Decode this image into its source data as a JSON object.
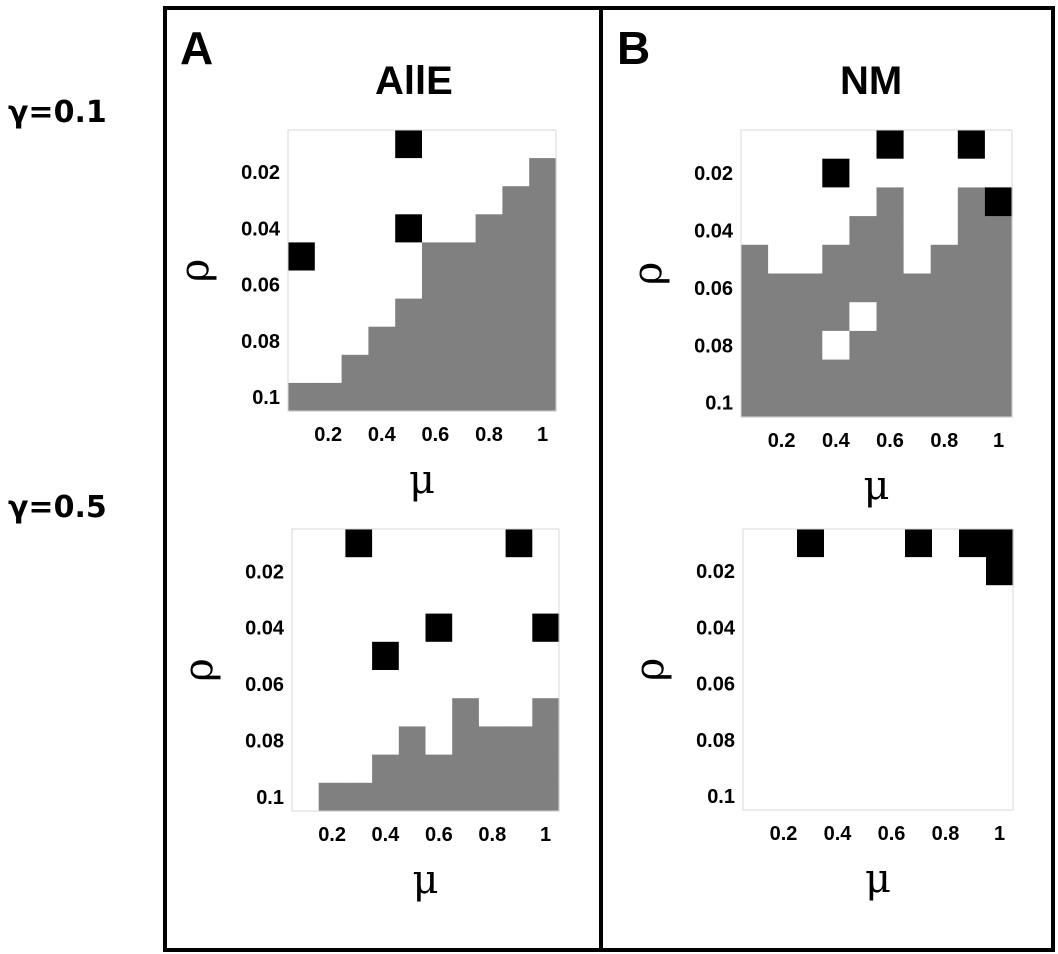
{
  "row_labels": [
    "γ=0.1",
    "γ=0.5"
  ],
  "panels": [
    {
      "letter": "A",
      "title": "AllE"
    },
    {
      "letter": "B",
      "title": "NM"
    }
  ],
  "colors": {
    "empty": "#ffffff",
    "gray": "#808080",
    "black": "#000000",
    "frame": "#000000"
  },
  "chart_data": [
    {
      "type": "heatmap",
      "panel": "A",
      "title": "AllE",
      "gamma": "γ=0.1",
      "xlabel": "μ",
      "ylabel": "ρ",
      "x": [
        0.1,
        0.2,
        0.3,
        0.4,
        0.5,
        0.6,
        0.7,
        0.8,
        0.9,
        1.0
      ],
      "y": [
        0.01,
        0.02,
        0.03,
        0.04,
        0.05,
        0.06,
        0.07,
        0.08,
        0.09,
        0.1
      ],
      "x_ticks": [
        "0.2",
        "0.4",
        "0.6",
        "0.8",
        "1"
      ],
      "y_ticks": [
        "0.02",
        "0.04",
        "0.06",
        "0.08",
        "0.1"
      ],
      "legend": {
        "0": "white",
        "1": "gray",
        "2": "black"
      },
      "values": [
        [
          0,
          0,
          0,
          0,
          2,
          0,
          0,
          0,
          0,
          0
        ],
        [
          0,
          0,
          0,
          0,
          0,
          0,
          0,
          0,
          0,
          1
        ],
        [
          0,
          0,
          0,
          0,
          0,
          0,
          0,
          0,
          1,
          1
        ],
        [
          0,
          0,
          0,
          0,
          2,
          0,
          0,
          1,
          1,
          1
        ],
        [
          2,
          0,
          0,
          0,
          0,
          1,
          1,
          1,
          1,
          1
        ],
        [
          0,
          0,
          0,
          0,
          0,
          1,
          1,
          1,
          1,
          1
        ],
        [
          0,
          0,
          0,
          0,
          1,
          1,
          1,
          1,
          1,
          1
        ],
        [
          0,
          0,
          0,
          1,
          1,
          1,
          1,
          1,
          1,
          1
        ],
        [
          0,
          0,
          1,
          1,
          1,
          1,
          1,
          1,
          1,
          1
        ],
        [
          1,
          1,
          1,
          1,
          1,
          1,
          1,
          1,
          1,
          1
        ]
      ]
    },
    {
      "type": "heatmap",
      "panel": "B",
      "title": "NM",
      "gamma": "γ=0.1",
      "xlabel": "μ",
      "ylabel": "ρ",
      "x": [
        0.1,
        0.2,
        0.3,
        0.4,
        0.5,
        0.6,
        0.7,
        0.8,
        0.9,
        1.0
      ],
      "y": [
        0.01,
        0.02,
        0.03,
        0.04,
        0.05,
        0.06,
        0.07,
        0.08,
        0.09,
        0.1
      ],
      "x_ticks": [
        "0.2",
        "0.4",
        "0.6",
        "0.8",
        "1"
      ],
      "y_ticks": [
        "0.02",
        "0.04",
        "0.06",
        "0.08",
        "0.1"
      ],
      "legend": {
        "0": "white",
        "1": "gray",
        "2": "black"
      },
      "values": [
        [
          0,
          0,
          0,
          0,
          0,
          2,
          0,
          0,
          2,
          0
        ],
        [
          0,
          0,
          0,
          2,
          0,
          0,
          0,
          0,
          0,
          0
        ],
        [
          0,
          0,
          0,
          0,
          0,
          1,
          0,
          0,
          1,
          2
        ],
        [
          0,
          0,
          0,
          0,
          1,
          1,
          0,
          0,
          1,
          1
        ],
        [
          1,
          0,
          0,
          1,
          1,
          1,
          0,
          1,
          1,
          1
        ],
        [
          1,
          1,
          1,
          1,
          1,
          1,
          1,
          1,
          1,
          1
        ],
        [
          1,
          1,
          1,
          1,
          0,
          1,
          1,
          1,
          1,
          1
        ],
        [
          1,
          1,
          1,
          0,
          1,
          1,
          1,
          1,
          1,
          1
        ],
        [
          1,
          1,
          1,
          1,
          1,
          1,
          1,
          1,
          1,
          1
        ],
        [
          1,
          1,
          1,
          1,
          1,
          1,
          1,
          1,
          1,
          1
        ]
      ]
    },
    {
      "type": "heatmap",
      "panel": "A",
      "title": "AllE",
      "gamma": "γ=0.5",
      "xlabel": "μ",
      "ylabel": "ρ",
      "x": [
        0.1,
        0.2,
        0.3,
        0.4,
        0.5,
        0.6,
        0.7,
        0.8,
        0.9,
        1.0
      ],
      "y": [
        0.01,
        0.02,
        0.03,
        0.04,
        0.05,
        0.06,
        0.07,
        0.08,
        0.09,
        0.1
      ],
      "x_ticks": [
        "0.2",
        "0.4",
        "0.6",
        "0.8",
        "1"
      ],
      "y_ticks": [
        "0.02",
        "0.04",
        "0.06",
        "0.08",
        "0.1"
      ],
      "legend": {
        "0": "white",
        "1": "gray",
        "2": "black"
      },
      "values": [
        [
          0,
          0,
          2,
          0,
          0,
          0,
          0,
          0,
          2,
          0
        ],
        [
          0,
          0,
          0,
          0,
          0,
          0,
          0,
          0,
          0,
          0
        ],
        [
          0,
          0,
          0,
          0,
          0,
          0,
          0,
          0,
          0,
          0
        ],
        [
          0,
          0,
          0,
          0,
          0,
          2,
          0,
          0,
          0,
          2
        ],
        [
          0,
          0,
          0,
          2,
          0,
          0,
          0,
          0,
          0,
          0
        ],
        [
          0,
          0,
          0,
          0,
          0,
          0,
          0,
          0,
          0,
          0
        ],
        [
          0,
          0,
          0,
          0,
          0,
          0,
          1,
          0,
          0,
          1
        ],
        [
          0,
          0,
          0,
          0,
          1,
          0,
          1,
          1,
          1,
          1
        ],
        [
          0,
          0,
          0,
          1,
          1,
          1,
          1,
          1,
          1,
          1
        ],
        [
          0,
          1,
          1,
          1,
          1,
          1,
          1,
          1,
          1,
          1
        ]
      ]
    },
    {
      "type": "heatmap",
      "panel": "B",
      "title": "NM",
      "gamma": "γ=0.5",
      "xlabel": "μ",
      "ylabel": "ρ",
      "x": [
        0.1,
        0.2,
        0.3,
        0.4,
        0.5,
        0.6,
        0.7,
        0.8,
        0.9,
        1.0
      ],
      "y": [
        0.01,
        0.02,
        0.03,
        0.04,
        0.05,
        0.06,
        0.07,
        0.08,
        0.09,
        0.1
      ],
      "x_ticks": [
        "0.2",
        "0.4",
        "0.6",
        "0.8",
        "1"
      ],
      "y_ticks": [
        "0.02",
        "0.04",
        "0.06",
        "0.08",
        "0.1"
      ],
      "legend": {
        "0": "white",
        "1": "gray",
        "2": "black"
      },
      "values": [
        [
          0,
          0,
          2,
          0,
          0,
          0,
          2,
          0,
          2,
          2
        ],
        [
          0,
          0,
          0,
          0,
          0,
          0,
          0,
          0,
          0,
          2
        ],
        [
          0,
          0,
          0,
          0,
          0,
          0,
          0,
          0,
          0,
          0
        ],
        [
          0,
          0,
          0,
          0,
          0,
          0,
          0,
          0,
          0,
          0
        ],
        [
          0,
          0,
          0,
          0,
          0,
          0,
          0,
          0,
          0,
          0
        ],
        [
          0,
          0,
          0,
          0,
          0,
          0,
          0,
          0,
          0,
          0
        ],
        [
          0,
          0,
          0,
          0,
          0,
          0,
          0,
          0,
          0,
          0
        ],
        [
          0,
          0,
          0,
          0,
          0,
          0,
          0,
          0,
          0,
          0
        ],
        [
          0,
          0,
          0,
          0,
          0,
          0,
          0,
          0,
          0,
          0
        ],
        [
          0,
          0,
          0,
          0,
          0,
          0,
          0,
          0,
          0,
          0
        ]
      ]
    }
  ]
}
